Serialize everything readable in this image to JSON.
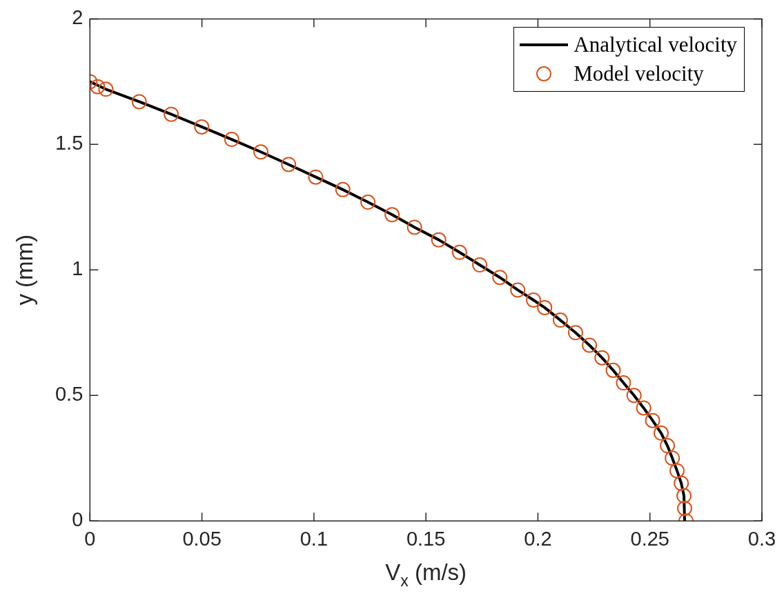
{
  "chart_data": {
    "type": "line",
    "xlabel": "V$_{x}$ (m/s)",
    "ylabel": "y (mm)",
    "xlim": [
      0,
      0.3
    ],
    "ylim": [
      0,
      2
    ],
    "xticks": [
      0,
      0.05,
      0.1,
      0.15,
      0.2,
      0.25,
      0.3
    ],
    "yticks": [
      0,
      0.5,
      1,
      1.5,
      2
    ],
    "grid": false,
    "legend": "top right",
    "series": [
      {
        "name": "Analytical velocity",
        "type": "line",
        "color": "#000000",
        "marker": "none",
        "line_style": "solid",
        "x": [
          0,
          0.0071,
          0.022,
          0.0363,
          0.0499,
          0.0633,
          0.0763,
          0.0887,
          0.1008,
          0.1129,
          0.1241,
          0.1349,
          0.1449,
          0.1557,
          0.165,
          0.174,
          0.183,
          0.191,
          0.198,
          0.203,
          0.21,
          0.2168,
          0.223,
          0.2286,
          0.2336,
          0.2382,
          0.2429,
          0.2472,
          0.2512,
          0.255,
          0.2578,
          0.26,
          0.2621,
          0.264,
          0.2652,
          0.2655
        ],
        "values": [
          1.75,
          1.72,
          1.67,
          1.62,
          1.57,
          1.52,
          1.47,
          1.42,
          1.37,
          1.32,
          1.27,
          1.22,
          1.17,
          1.12,
          1.07,
          1.02,
          0.97,
          0.92,
          0.88,
          0.85,
          0.8,
          0.75,
          0.7,
          0.65,
          0.6,
          0.55,
          0.5,
          0.45,
          0.4,
          0.35,
          0.3,
          0.25,
          0.2,
          0.15,
          0.1,
          0
        ]
      },
      {
        "name": "Model velocity",
        "type": "scatter",
        "color": "#d95319",
        "marker": "circle",
        "x": [
          0,
          0.0034,
          0.0071,
          0.022,
          0.0363,
          0.0499,
          0.0633,
          0.0763,
          0.0887,
          0.1008,
          0.1129,
          0.1241,
          0.1349,
          0.1449,
          0.1557,
          0.165,
          0.174,
          0.183,
          0.191,
          0.198,
          0.203,
          0.21,
          0.2168,
          0.223,
          0.2286,
          0.2336,
          0.2382,
          0.2429,
          0.2472,
          0.2512,
          0.255,
          0.2578,
          0.26,
          0.2621,
          0.264,
          0.2652,
          0.2655,
          0.2661
        ],
        "values": [
          1.75,
          1.73,
          1.72,
          1.67,
          1.62,
          1.57,
          1.52,
          1.47,
          1.42,
          1.37,
          1.32,
          1.27,
          1.22,
          1.17,
          1.12,
          1.07,
          1.02,
          0.97,
          0.92,
          0.88,
          0.85,
          0.8,
          0.75,
          0.7,
          0.65,
          0.6,
          0.55,
          0.5,
          0.45,
          0.4,
          0.35,
          0.3,
          0.25,
          0.2,
          0.15,
          0.1,
          0.05,
          0
        ]
      }
    ]
  }
}
